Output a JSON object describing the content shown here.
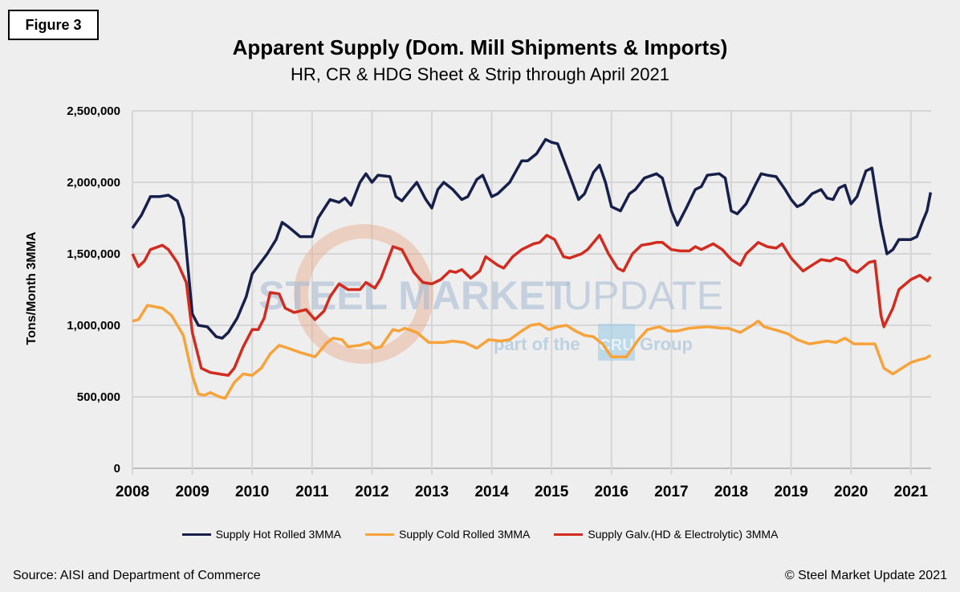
{
  "figure_label": "Figure 3",
  "source": "Source: AISI and Department of Commerce",
  "copyright": "© Steel Market Update 2021",
  "watermark": {
    "main_bold": "STEEL MARKET",
    "main_light": "UPDATE",
    "sub": "part of the",
    "brand": "CRU",
    "group": "Group"
  },
  "chart_data": {
    "type": "line",
    "title": "Apparent Supply (Dom. Mill Shipments & Imports)",
    "subtitle": "HR, CR & HDG Sheet & Strip through April 2021",
    "ylabel": "Tons/Month 3MMA",
    "xlabel": "",
    "xlim": [
      2008,
      2021.35
    ],
    "ylim": [
      0,
      2500000
    ],
    "grid": true,
    "legend_position": "bottom",
    "x_ticks": [
      "2008",
      "2009",
      "2010",
      "2011",
      "2012",
      "2013",
      "2014",
      "2015",
      "2016",
      "2017",
      "2018",
      "2019",
      "2020",
      "2021"
    ],
    "y_ticks": [
      "0",
      "500,000",
      "1,000,000",
      "1,500,000",
      "2,000,000",
      "2,500,000"
    ],
    "series": [
      {
        "name": "Supply Hot Rolled 3MMA",
        "color": "#16204a",
        "x": [
          2008.0,
          2008.15,
          2008.3,
          2008.45,
          2008.6,
          2008.75,
          2008.85,
          2009.0,
          2009.1,
          2009.25,
          2009.4,
          2009.5,
          2009.6,
          2009.75,
          2009.9,
          2010.0,
          2010.25,
          2010.4,
          2010.5,
          2010.6,
          2010.8,
          2011.0,
          2011.1,
          2011.3,
          2011.45,
          2011.55,
          2011.65,
          2011.8,
          2011.9,
          2012.0,
          2012.1,
          2012.3,
          2012.4,
          2012.5,
          2012.65,
          2012.75,
          2012.9,
          2013.0,
          2013.1,
          2013.2,
          2013.35,
          2013.5,
          2013.6,
          2013.75,
          2013.85,
          2014.0,
          2014.1,
          2014.3,
          2014.5,
          2014.6,
          2014.75,
          2014.9,
          2015.0,
          2015.1,
          2015.3,
          2015.45,
          2015.55,
          2015.7,
          2015.8,
          2015.9,
          2016.0,
          2016.15,
          2016.3,
          2016.4,
          2016.55,
          2016.75,
          2016.85,
          2017.0,
          2017.1,
          2017.25,
          2017.4,
          2017.5,
          2017.6,
          2017.8,
          2017.9,
          2018.0,
          2018.1,
          2018.25,
          2018.4,
          2018.5,
          2018.6,
          2018.75,
          2018.9,
          2019.0,
          2019.1,
          2019.2,
          2019.35,
          2019.5,
          2019.6,
          2019.7,
          2019.8,
          2019.9,
          2020.0,
          2020.1,
          2020.25,
          2020.35,
          2020.5,
          2020.6,
          2020.7,
          2020.8,
          2021.0,
          2021.1,
          2021.2,
          2021.27,
          2021.33
        ],
        "values": [
          1680000,
          1770000,
          1900000,
          1900000,
          1910000,
          1870000,
          1750000,
          1080000,
          1000000,
          990000,
          920000,
          910000,
          950000,
          1050000,
          1200000,
          1360000,
          1500000,
          1600000,
          1720000,
          1690000,
          1620000,
          1620000,
          1750000,
          1880000,
          1860000,
          1890000,
          1840000,
          2000000,
          2060000,
          2000000,
          2050000,
          2040000,
          1900000,
          1870000,
          1950000,
          2000000,
          1880000,
          1820000,
          1950000,
          2000000,
          1950000,
          1880000,
          1900000,
          2020000,
          2050000,
          1900000,
          1920000,
          2000000,
          2150000,
          2150000,
          2200000,
          2300000,
          2280000,
          2270000,
          2050000,
          1880000,
          1920000,
          2070000,
          2120000,
          2000000,
          1830000,
          1800000,
          1920000,
          1950000,
          2030000,
          2060000,
          2030000,
          1800000,
          1700000,
          1820000,
          1950000,
          1970000,
          2050000,
          2060000,
          2030000,
          1800000,
          1780000,
          1850000,
          1980000,
          2060000,
          2050000,
          2040000,
          1950000,
          1880000,
          1830000,
          1850000,
          1920000,
          1950000,
          1890000,
          1880000,
          1960000,
          1980000,
          1850000,
          1900000,
          2080000,
          2100000,
          1700000,
          1500000,
          1530000,
          1600000,
          1600000,
          1620000,
          1730000,
          1800000,
          1930000
        ]
      },
      {
        "name": "Supply Cold Rolled 3MMA",
        "color": "#f8a23a",
        "x": [
          2008.0,
          2008.1,
          2008.25,
          2008.5,
          2008.65,
          2008.85,
          2009.0,
          2009.1,
          2009.2,
          2009.3,
          2009.45,
          2009.55,
          2009.7,
          2009.85,
          2010.0,
          2010.15,
          2010.3,
          2010.45,
          2010.6,
          2010.8,
          2011.05,
          2011.25,
          2011.35,
          2011.5,
          2011.6,
          2011.8,
          2011.95,
          2012.05,
          2012.15,
          2012.35,
          2012.45,
          2012.55,
          2012.75,
          2012.95,
          2013.2,
          2013.35,
          2013.55,
          2013.75,
          2013.95,
          2014.15,
          2014.3,
          2014.5,
          2014.65,
          2014.8,
          2014.95,
          2015.1,
          2015.25,
          2015.4,
          2015.55,
          2015.7,
          2015.85,
          2016.0,
          2016.25,
          2016.45,
          2016.6,
          2016.8,
          2016.95,
          2017.1,
          2017.3,
          2017.6,
          2017.85,
          2017.95,
          2018.15,
          2018.35,
          2018.45,
          2018.55,
          2018.8,
          2018.95,
          2019.1,
          2019.3,
          2019.45,
          2019.6,
          2019.75,
          2019.9,
          2020.05,
          2020.2,
          2020.4,
          2020.55,
          2020.7,
          2020.85,
          2021.0,
          2021.15,
          2021.25,
          2021.33
        ],
        "values": [
          1030000,
          1040000,
          1140000,
          1120000,
          1070000,
          930000,
          650000,
          520000,
          510000,
          530000,
          500000,
          490000,
          600000,
          660000,
          650000,
          700000,
          800000,
          860000,
          840000,
          810000,
          780000,
          880000,
          910000,
          900000,
          850000,
          860000,
          880000,
          840000,
          850000,
          970000,
          960000,
          980000,
          950000,
          880000,
          880000,
          890000,
          880000,
          840000,
          900000,
          890000,
          900000,
          960000,
          1000000,
          1010000,
          970000,
          990000,
          1000000,
          960000,
          930000,
          920000,
          870000,
          780000,
          780000,
          900000,
          970000,
          990000,
          960000,
          960000,
          980000,
          990000,
          980000,
          980000,
          950000,
          1000000,
          1030000,
          990000,
          960000,
          940000,
          900000,
          870000,
          880000,
          890000,
          880000,
          910000,
          870000,
          870000,
          870000,
          700000,
          660000,
          700000,
          740000,
          760000,
          770000,
          790000
        ]
      },
      {
        "name": "Supply Galv.(HD & Electrolytic) 3MMA",
        "color": "#d22b1f",
        "x": [
          2008.0,
          2008.1,
          2008.2,
          2008.3,
          2008.5,
          2008.6,
          2008.75,
          2008.9,
          2009.0,
          2009.15,
          2009.3,
          2009.45,
          2009.6,
          2009.7,
          2009.85,
          2010.0,
          2010.1,
          2010.2,
          2010.3,
          2010.45,
          2010.55,
          2010.7,
          2010.9,
          2011.05,
          2011.2,
          2011.3,
          2011.45,
          2011.6,
          2011.8,
          2011.9,
          2012.05,
          2012.15,
          2012.35,
          2012.5,
          2012.7,
          2012.85,
          2013.0,
          2013.15,
          2013.3,
          2013.4,
          2013.5,
          2013.65,
          2013.8,
          2013.9,
          2014.1,
          2014.2,
          2014.35,
          2014.5,
          2014.7,
          2014.8,
          2014.92,
          2015.05,
          2015.2,
          2015.3,
          2015.5,
          2015.6,
          2015.8,
          2015.95,
          2016.1,
          2016.2,
          2016.35,
          2016.5,
          2016.65,
          2016.75,
          2016.85,
          2017.0,
          2017.15,
          2017.3,
          2017.4,
          2017.5,
          2017.7,
          2017.85,
          2018.0,
          2018.15,
          2018.25,
          2018.45,
          2018.6,
          2018.75,
          2018.85,
          2019.0,
          2019.2,
          2019.35,
          2019.5,
          2019.65,
          2019.75,
          2019.9,
          2020.0,
          2020.1,
          2020.3,
          2020.4,
          2020.5,
          2020.55,
          2020.7,
          2020.8,
          2021.0,
          2021.15,
          2021.28,
          2021.33
        ],
        "values": [
          1500000,
          1410000,
          1450000,
          1530000,
          1560000,
          1530000,
          1440000,
          1300000,
          950000,
          700000,
          670000,
          660000,
          650000,
          700000,
          850000,
          970000,
          970000,
          1050000,
          1230000,
          1220000,
          1120000,
          1090000,
          1110000,
          1040000,
          1100000,
          1200000,
          1290000,
          1250000,
          1250000,
          1300000,
          1260000,
          1330000,
          1550000,
          1530000,
          1370000,
          1300000,
          1290000,
          1320000,
          1380000,
          1370000,
          1390000,
          1330000,
          1380000,
          1480000,
          1420000,
          1400000,
          1480000,
          1530000,
          1570000,
          1580000,
          1630000,
          1600000,
          1480000,
          1470000,
          1500000,
          1530000,
          1630000,
          1500000,
          1400000,
          1380000,
          1500000,
          1560000,
          1570000,
          1580000,
          1580000,
          1530000,
          1520000,
          1520000,
          1550000,
          1530000,
          1570000,
          1530000,
          1460000,
          1420000,
          1500000,
          1580000,
          1550000,
          1540000,
          1570000,
          1470000,
          1380000,
          1420000,
          1460000,
          1450000,
          1470000,
          1450000,
          1390000,
          1370000,
          1440000,
          1450000,
          1070000,
          990000,
          1120000,
          1250000,
          1320000,
          1350000,
          1310000,
          1340000
        ]
      }
    ]
  }
}
